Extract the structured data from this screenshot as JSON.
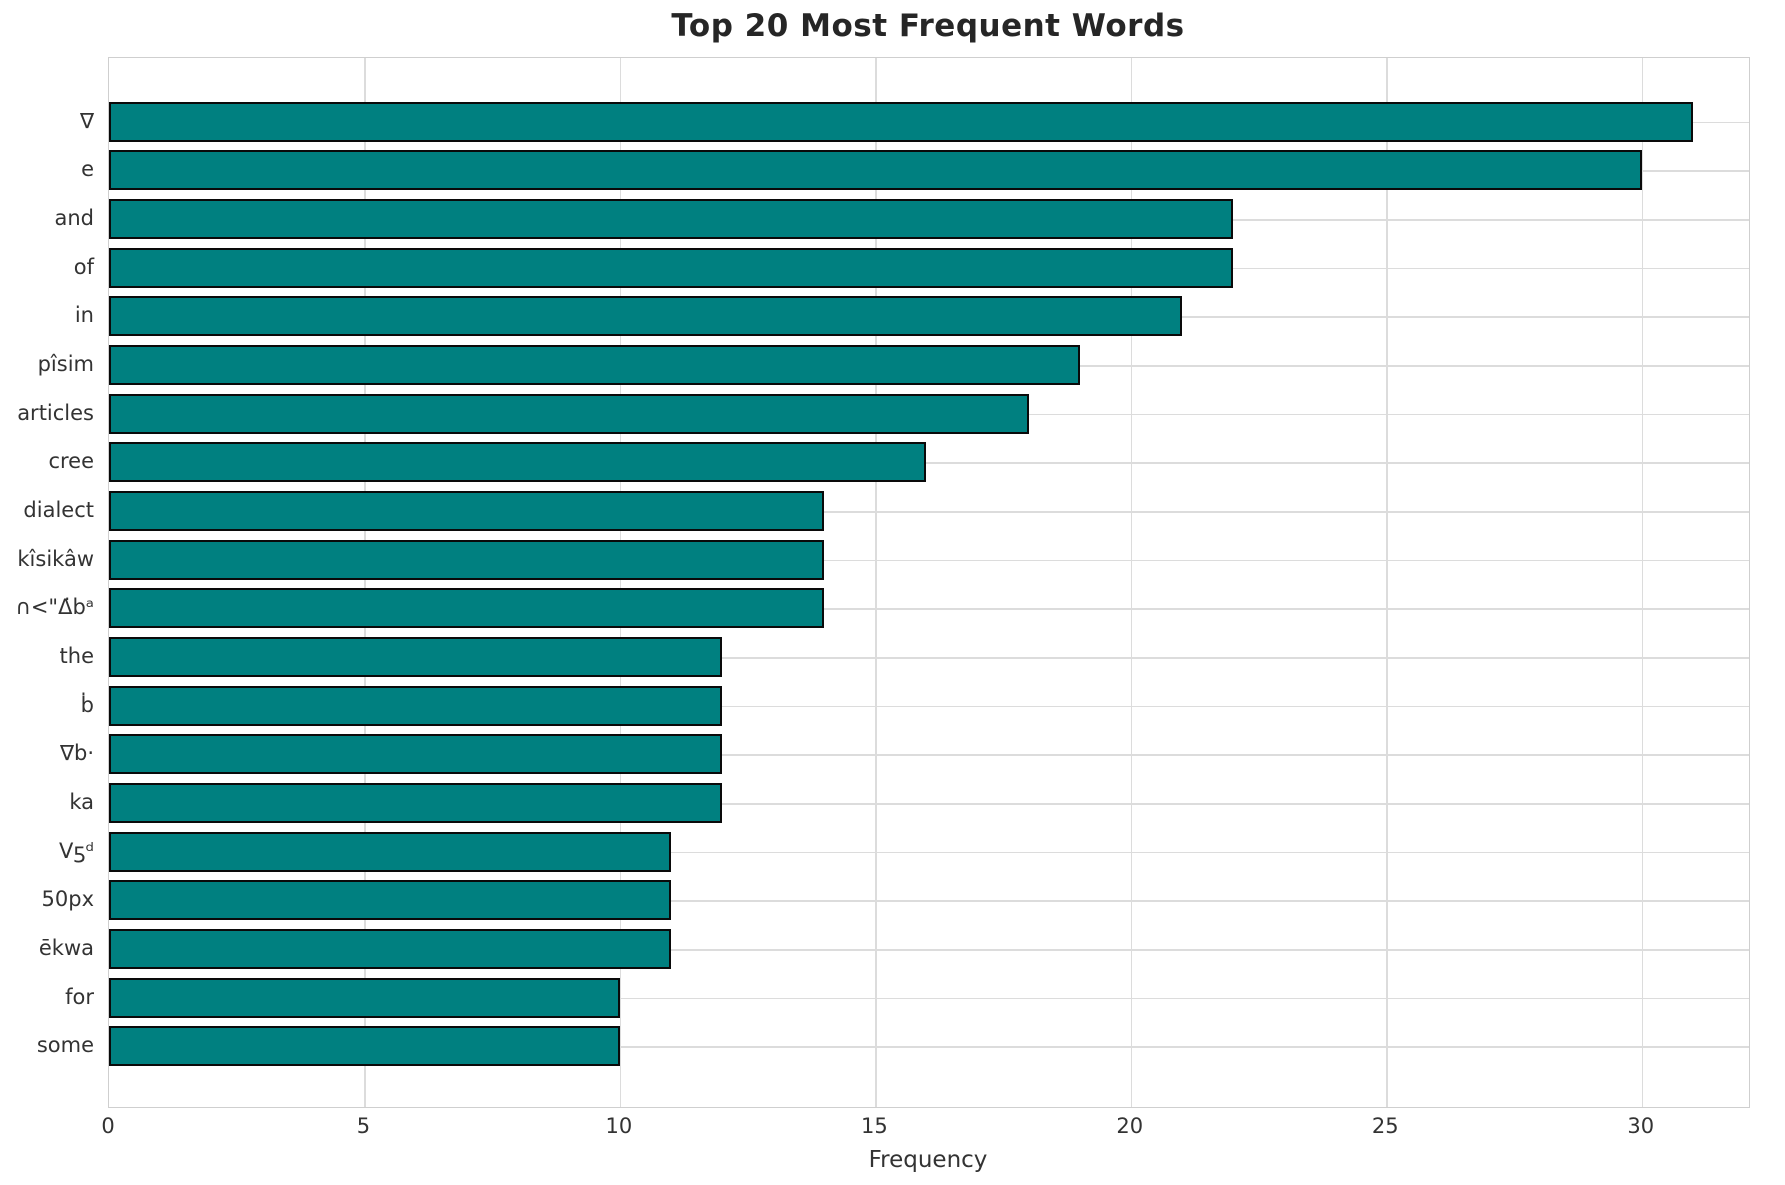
{
  "title": "Top 20 Most Frequent Words",
  "chart_data": {
    "type": "bar",
    "orientation": "horizontal",
    "title": "Top 20 Most Frequent Words",
    "xlabel": "Frequency",
    "ylabel": "",
    "categories": [
      "∇",
      "e",
      "and",
      "of",
      "in",
      "pîsim",
      "articles",
      "cree",
      "dialect",
      "kîsikâw",
      "∩<\"Δ̇bᵃ",
      "the",
      "ḃ",
      "∇b·",
      "ka",
      "Vƽᵈ",
      "50px",
      "ēkwa",
      "for",
      "some"
    ],
    "values": [
      31,
      30,
      22,
      22,
      21,
      19,
      18,
      16,
      14,
      14,
      14,
      12,
      12,
      12,
      12,
      11,
      11,
      11,
      10,
      10
    ],
    "x_ticks": [
      0,
      5,
      10,
      15,
      20,
      25,
      30
    ],
    "xlim": [
      0,
      32.1
    ],
    "grid": true,
    "legend_position": "none",
    "bar_color": "#008080",
    "bar_edge_color": "#0a0a0a",
    "grid_color": "#dcdcdc",
    "text_color": "#333333",
    "title_color": "#262626"
  }
}
